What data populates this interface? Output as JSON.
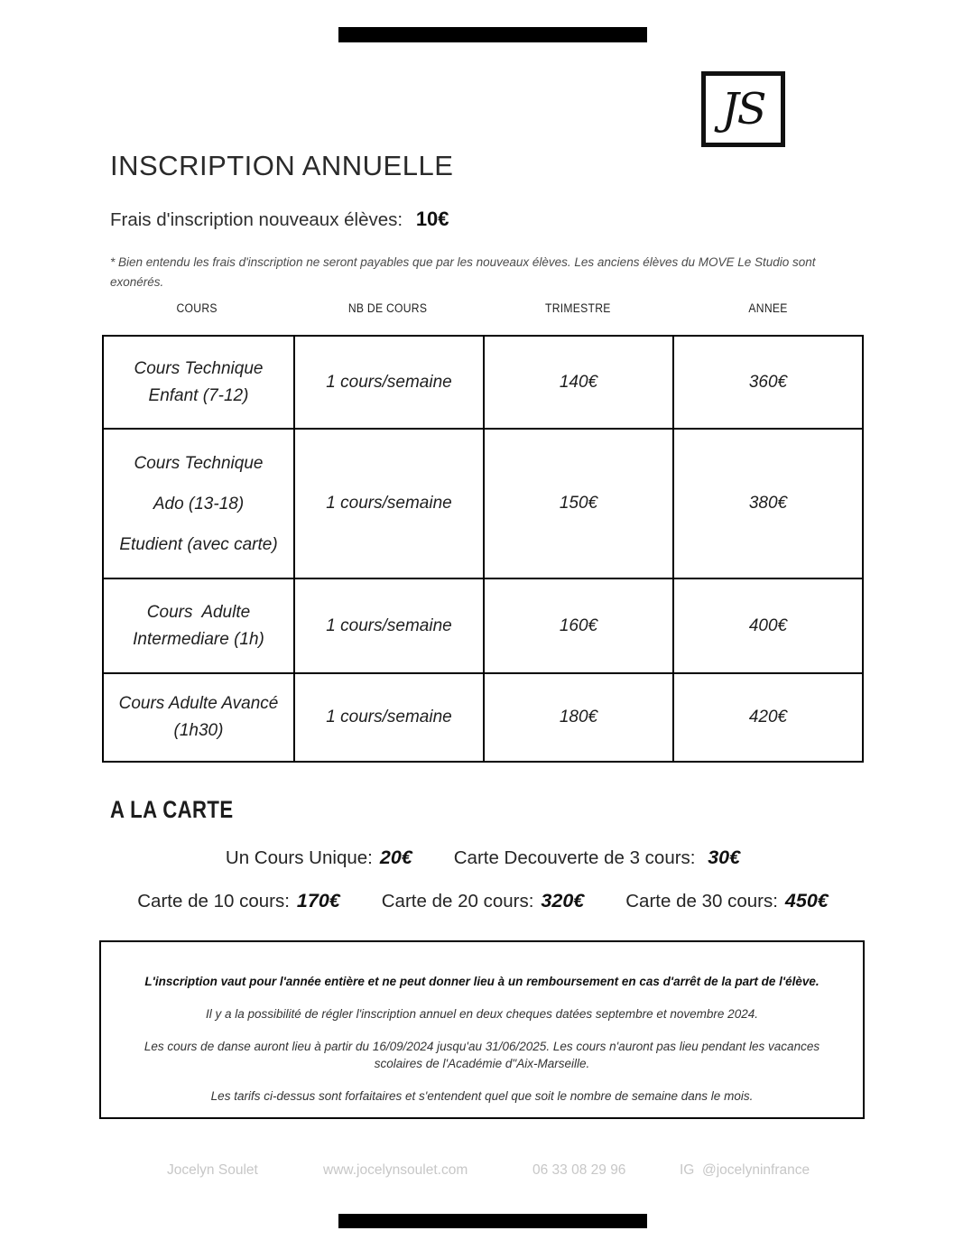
{
  "logo": {
    "text": "JS"
  },
  "header": {
    "title": "INSCRIPTION ANNUELLE",
    "fee_label": "Frais d'inscription nouveaux élèves:",
    "fee_value": "10€",
    "note": "* Bien entendu les frais d'inscription ne seront payables que par les nouveaux élèves. Les anciens élèves du MOVE Le Studio sont\nexonérés."
  },
  "table": {
    "headers": [
      "COURS",
      "NB DE COURS",
      "TRIMESTRE",
      "ANNEE"
    ],
    "rows": [
      {
        "course": "Cours Technique\nEnfant (7-12)",
        "nb": "1 cours/semaine",
        "trimestre": "140€",
        "annee": "360€"
      },
      {
        "course": "Cours Technique\nAdo (13-18)\nEtudient (avec carte)",
        "nb": "1 cours/semaine",
        "trimestre": "150€",
        "annee": "380€"
      },
      {
        "course": "Cours  Adulte\nIntermediare (1h)",
        "nb": "1 cours/semaine",
        "trimestre": "160€",
        "annee": "400€"
      },
      {
        "course": "Cours Adulte Avancé\n(1h30)",
        "nb": "1 cours/semaine",
        "trimestre": "180€",
        "annee": "420€"
      }
    ]
  },
  "a_la_carte": {
    "heading": "A LA CARTE",
    "line1": [
      {
        "label": "Un Cours Unique:",
        "price": "20€"
      },
      {
        "label": "Carte Decouverte de 3 cours: ",
        "price": "30€"
      }
    ],
    "line2": [
      {
        "label": "Carte de 10 cours:",
        "price": "170€"
      },
      {
        "label": "Carte de 20 cours:",
        "price": "320€"
      },
      {
        "label": "Carte de 30 cours:",
        "price": "450€"
      }
    ]
  },
  "terms": {
    "p1": "L'inscription vaut pour l'année entière et ne peut donner lieu à un remboursement en cas d'arrêt de la part de l'élève.",
    "p2": "Il y a la possibilité de régler l'inscription annuel en deux cheques datées septembre et novembre 2024.",
    "p3": "Les cours de danse auront lieu à partir du 16/09/2024 jusqu'au 31/06/2025. Les cours n'auront pas lieu pendant les vacances\nscolaires de l'Académie d\"Aix-Marseille.",
    "p4": "Les tarifs ci-dessus sont forfaitaires et s'entendent quel que soit le nombre de semaine dans le mois."
  },
  "footer": {
    "name": "Jocelyn Soulet",
    "website": "www.jocelynsoulet.com",
    "phone": "06 33 08 29 96",
    "instagram": "IG  @jocelyninfrance"
  }
}
